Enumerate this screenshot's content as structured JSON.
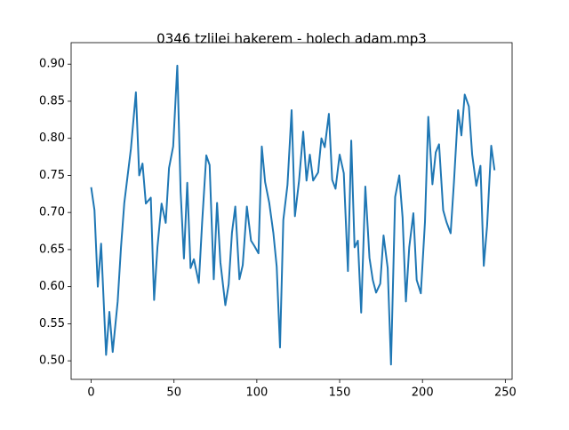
{
  "chart_data": {
    "type": "line",
    "title": "0346 tzlilei hakerem - holech adam.mp3",
    "x": [
      0,
      2,
      4,
      6,
      9,
      11,
      13,
      16,
      18,
      20,
      24,
      27,
      29,
      31,
      33,
      36,
      38,
      40,
      42.5,
      45,
      47,
      49.5,
      52,
      54,
      56,
      58,
      60,
      62,
      65,
      67,
      69.5,
      71.5,
      74,
      76,
      78,
      81,
      83,
      85,
      87,
      89.5,
      91.5,
      94,
      96.5,
      98.5,
      101,
      103,
      105,
      107.5,
      110,
      112,
      114,
      116,
      118.5,
      121,
      123,
      125.5,
      128,
      130,
      132,
      134,
      137,
      139,
      141,
      143.5,
      145.5,
      147.5,
      150,
      152.5,
      155,
      157,
      159,
      161,
      163,
      165.5,
      168,
      170,
      172,
      174.5,
      176.5,
      179,
      181,
      183.5,
      186,
      188,
      190,
      192,
      194.5,
      196.5,
      199,
      201.5,
      203.5,
      206,
      208,
      210,
      212.5,
      214.5,
      217,
      219,
      221.5,
      223.5,
      225.5,
      228,
      230,
      232.5,
      235,
      237,
      239,
      241.5,
      243.5
    ],
    "values": [
      0.734,
      0.703,
      0.6,
      0.658,
      0.508,
      0.566,
      0.512,
      0.58,
      0.653,
      0.713,
      0.786,
      0.862,
      0.75,
      0.766,
      0.712,
      0.72,
      0.582,
      0.653,
      0.712,
      0.686,
      0.76,
      0.789,
      0.898,
      0.728,
      0.638,
      0.74,
      0.625,
      0.637,
      0.605,
      0.687,
      0.777,
      0.764,
      0.61,
      0.713,
      0.633,
      0.575,
      0.603,
      0.673,
      0.708,
      0.61,
      0.629,
      0.708,
      0.662,
      0.655,
      0.645,
      0.789,
      0.741,
      0.713,
      0.672,
      0.627,
      0.518,
      0.69,
      0.737,
      0.838,
      0.695,
      0.743,
      0.809,
      0.743,
      0.778,
      0.743,
      0.754,
      0.8,
      0.788,
      0.833,
      0.744,
      0.732,
      0.778,
      0.753,
      0.621,
      0.797,
      0.653,
      0.662,
      0.565,
      0.735,
      0.639,
      0.609,
      0.592,
      0.604,
      0.669,
      0.625,
      0.495,
      0.721,
      0.75,
      0.693,
      0.58,
      0.653,
      0.699,
      0.609,
      0.591,
      0.687,
      0.829,
      0.738,
      0.781,
      0.792,
      0.703,
      0.687,
      0.672,
      0.741,
      0.838,
      0.804,
      0.859,
      0.843,
      0.778,
      0.736,
      0.763,
      0.628,
      0.682,
      0.79,
      0.757
    ],
    "color": "#1f77b4",
    "xlim": [
      -12.1,
      254.1
    ],
    "xticks": [
      0,
      50,
      100,
      150,
      200,
      250
    ],
    "ylim": [
      0.475,
      0.929
    ],
    "yticks": [
      {
        "value": 0.5,
        "label": "0.50"
      },
      {
        "value": 0.55,
        "label": "0.55"
      },
      {
        "value": 0.6,
        "label": "0.60"
      },
      {
        "value": 0.65,
        "label": "0.65"
      },
      {
        "value": 0.7,
        "label": "0.70"
      },
      {
        "value": 0.75,
        "label": "0.75"
      },
      {
        "value": 0.8,
        "label": "0.80"
      },
      {
        "value": 0.85,
        "label": "0.85"
      },
      {
        "value": 0.9,
        "label": "0.90"
      }
    ]
  }
}
